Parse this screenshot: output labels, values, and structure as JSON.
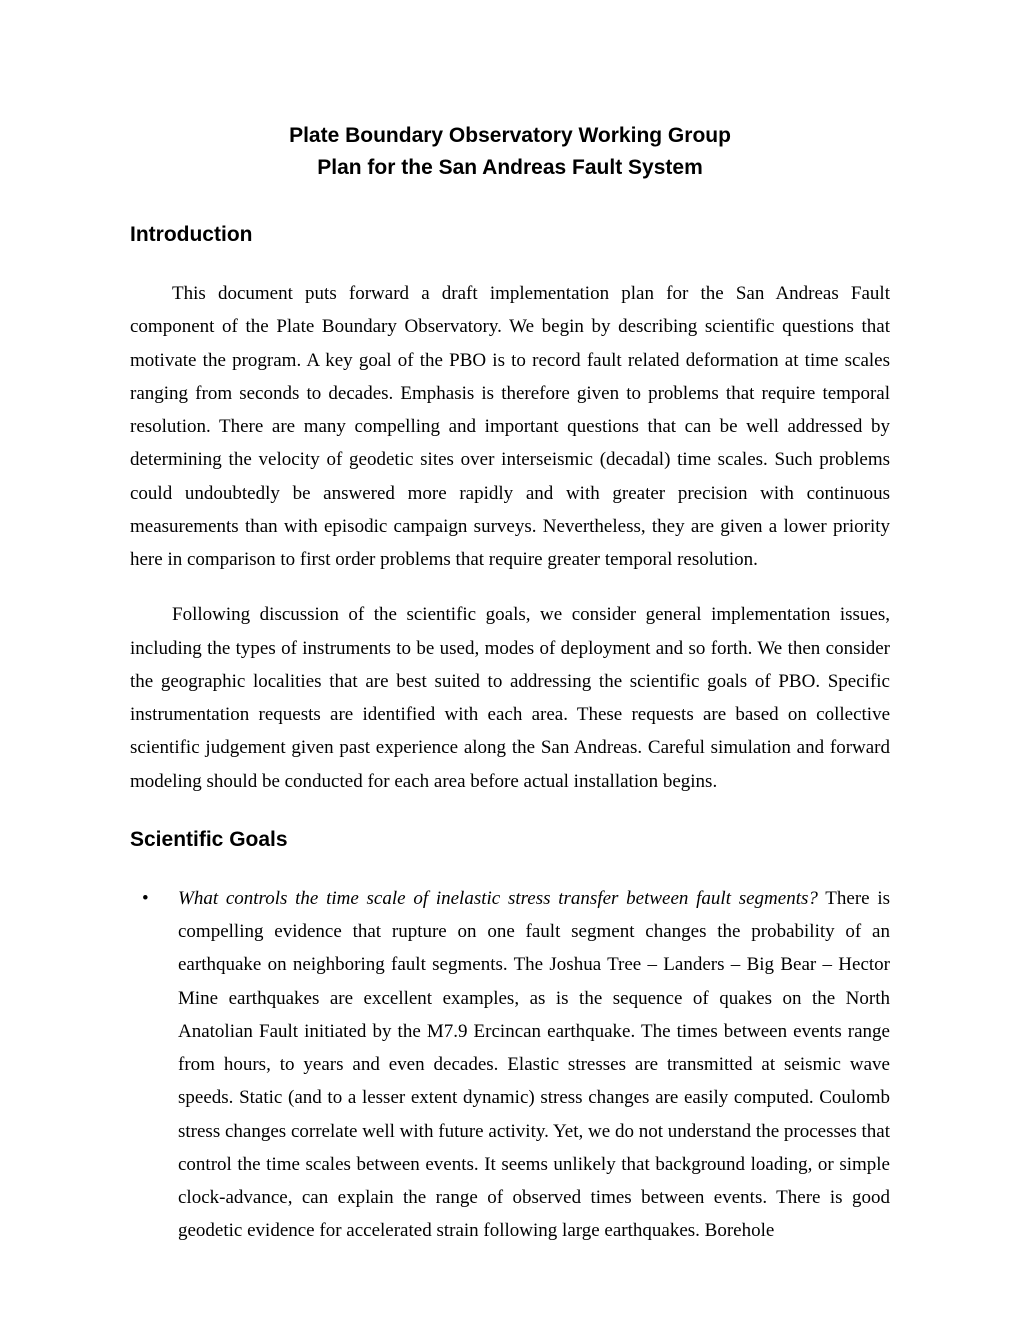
{
  "title": {
    "line1": "Plate Boundary Observatory Working Group",
    "line2": "Plan for the San Andreas Fault System"
  },
  "sections": {
    "introduction": {
      "heading": "Introduction",
      "para1": "This document puts forward a draft implementation plan for the San Andreas Fault component of the Plate Boundary Observatory.  We begin by describing scientific questions that motivate the program.  A key goal of the PBO is to record fault related deformation at time scales ranging from seconds to decades.  Emphasis is therefore given to problems that require temporal resolution.  There are many compelling and important questions that can be well addressed by determining the velocity of geodetic sites over interseismic (decadal) time scales.  Such problems could undoubtedly be answered more rapidly and with greater precision with continuous measurements than with episodic campaign surveys.  Nevertheless, they are given a lower priority here in comparison to first order problems that require greater temporal resolution.",
      "para2": "Following discussion of the scientific goals, we consider general implementation issues, including the types of instruments to be used, modes of deployment and so forth.  We then consider the geographic localities that are best suited to addressing the scientific goals of PBO.  Specific instrumentation requests are identified with each area.  These requests are based on collective scientific judgement given past experience along the San Andreas.  Careful simulation and forward modeling should be conducted for each area before actual installation begins."
    },
    "scientific_goals": {
      "heading": "Scientific Goals",
      "item1": {
        "question": "What controls the time scale of inelastic stress transfer between fault segments?",
        "body": "There is compelling evidence that rupture on one fault segment changes the probability of an earthquake on neighboring fault segments.  The Joshua Tree – Landers – Big Bear – Hector Mine earthquakes are excellent examples, as is the sequence of quakes on the North Anatolian Fault initiated by the M7.9 Ercincan earthquake. The times between events range from hours, to years and even decades.  Elastic stresses are transmitted at seismic wave speeds.  Static (and to a lesser extent dynamic) stress changes are easily computed.  Coulomb stress changes correlate well with future activity.  Yet, we do not understand the processes that control the time scales between events.  It seems unlikely that background loading, or simple clock-advance, can explain the range of observed times between events. There is good geodetic evidence for accelerated strain following large earthquakes. Borehole"
      }
    }
  }
}
